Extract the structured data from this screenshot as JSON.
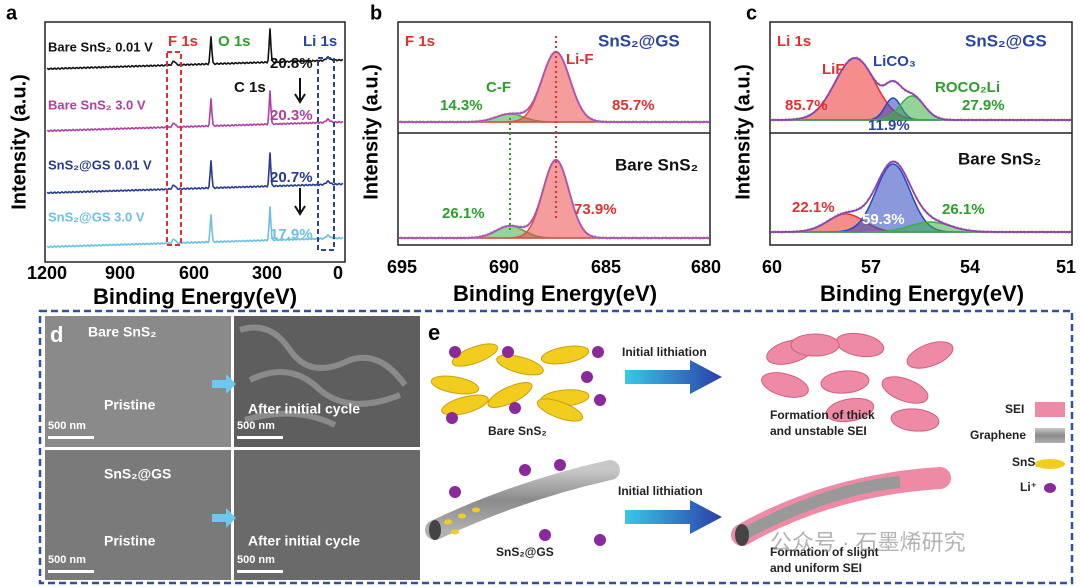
{
  "panels": {
    "a": {
      "letter": "a",
      "y_label": "Intensity (a.u.)",
      "x_label": "Binding Energy(eV)",
      "x_ticks": [
        "1200",
        "900",
        "600",
        "300",
        "0"
      ],
      "peak_labels": [
        "F 1s",
        "O 1s",
        "Li 1s",
        "C 1s"
      ],
      "traces": [
        {
          "label": "Bare SnS₂ 0.01 V",
          "percent": "20.8%"
        },
        {
          "label": "Bare SnS₂ 3.0 V",
          "percent": "20.3%"
        },
        {
          "label": "SnS₂@GS 0.01 V",
          "percent": "20.7%"
        },
        {
          "label": "SnS₂@GS 3.0 V",
          "percent": "17.9%"
        }
      ]
    },
    "b": {
      "letter": "b",
      "y_label": "Intensity (a.u.)",
      "x_label": "Binding Energy(eV)",
      "x_ticks": [
        "695",
        "690",
        "685",
        "680"
      ],
      "top": {
        "corner_label": "F 1s",
        "sample": "SnS₂@GS",
        "peaks": [
          {
            "name": "C-F",
            "percent": "14.3%"
          },
          {
            "name": "Li-F",
            "percent": "85.7%"
          }
        ]
      },
      "bottom": {
        "sample": "Bare SnS₂",
        "percents": [
          "26.1%",
          "73.9%"
        ]
      }
    },
    "c": {
      "letter": "c",
      "y_label": "Intensity (a.u.)",
      "x_label": "Binding Energy(eV)",
      "x_ticks": [
        "60",
        "57",
        "54",
        "51"
      ],
      "top": {
        "corner_label": "Li 1s",
        "sample": "SnS₂@GS",
        "peaks": [
          {
            "name": "LiF",
            "percent": "85.7%"
          },
          {
            "name": "LiCO₃",
            "percent": "11.9%"
          },
          {
            "name": "ROCO₂Li",
            "percent": "27.9%"
          }
        ]
      },
      "bottom": {
        "sample": "Bare SnS₂",
        "percents": [
          "22.1%",
          "59.3%",
          "26.1%"
        ]
      }
    },
    "d": {
      "letter": "d",
      "scale": "500 nm",
      "rows": [
        {
          "sample": "Bare SnS₂",
          "left": "Pristine",
          "right": "After initial cycle"
        },
        {
          "sample": "SnS₂@GS",
          "left": "Pristine",
          "right": "After initial cycle"
        }
      ]
    },
    "e": {
      "letter": "e",
      "arrow_label": "Initial lithiation",
      "top": {
        "sample": "Bare SnS₂",
        "result": [
          "Formation of thick",
          "and unstable SEI"
        ]
      },
      "bottom": {
        "sample": "SnS₂@GS",
        "result": [
          "Formation of slight",
          "and uniform SEI"
        ]
      },
      "legend": [
        "SEI",
        "Graphene",
        "SnS₂",
        "Li⁺"
      ]
    }
  },
  "watermark": "公众号 · 石墨烯研究"
}
